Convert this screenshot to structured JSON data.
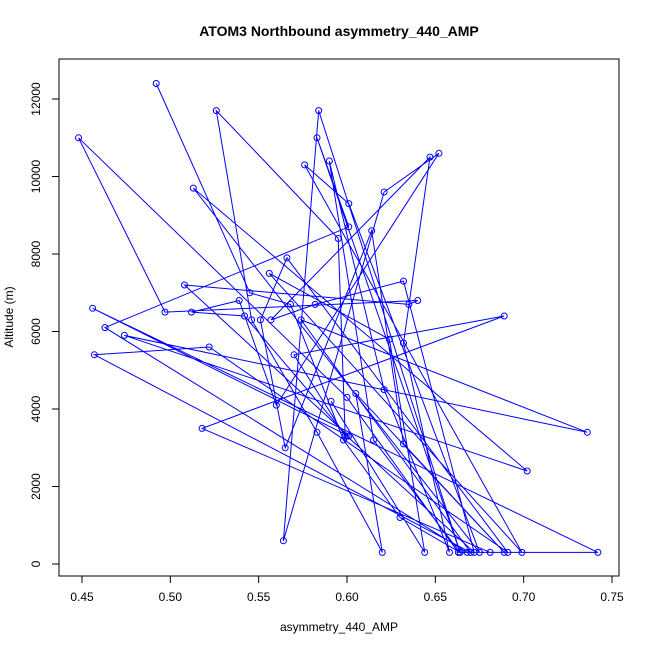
{
  "chart_data": {
    "type": "line",
    "title": "ATOM3 Northbound asymmetry_440_AMP",
    "xlabel": "asymmetry_440_AMP",
    "ylabel": "Altitude (m)",
    "xlim": [
      0.445,
      0.745
    ],
    "ylim": [
      0,
      12600
    ],
    "xticks": [
      0.45,
      0.5,
      0.55,
      0.6,
      0.65,
      0.7,
      0.75
    ],
    "xtick_labels": [
      "0.45",
      "0.50",
      "0.55",
      "0.60",
      "0.65",
      "0.70",
      "0.75"
    ],
    "yticks": [
      0,
      2000,
      4000,
      6000,
      8000,
      10000,
      12000
    ],
    "ytick_labels": [
      "0",
      "2000",
      "4000",
      "6000",
      "8000",
      "10000",
      "12000"
    ],
    "line_color": "#0000ff",
    "marker": "open-circle",
    "grid": false,
    "series": [
      {
        "x": [
          0.492,
          0.545,
          0.568,
          0.598,
          0.63,
          0.664,
          0.584,
          0.564,
          0.621,
          0.652,
          0.56,
          0.539,
          0.512,
          0.542,
          0.6,
          0.672,
          0.632,
          0.582,
          0.557,
          0.647,
          0.632,
          0.658,
          0.621,
          0.59,
          0.615,
          0.664,
          0.583,
          0.601,
          0.463,
          0.668,
          0.742,
          0.456,
          0.601,
          0.508,
          0.635,
          0.64,
          0.497,
          0.448,
          0.6,
          0.663,
          0.681,
          0.518,
          0.689,
          0.57,
          0.599,
          0.595,
          0.526,
          0.546,
          0.583,
          0.62,
          0.605,
          0.689,
          0.632,
          0.614,
          0.565,
          0.551,
          0.566,
          0.691,
          0.522,
          0.457,
          0.67,
          0.574,
          0.736,
          0.474,
          0.702,
          0.513,
          0.675,
          0.601,
          0.576,
          0.699,
          0.556,
          0.624,
          0.644,
          0.591
        ],
        "y": [
          12400,
          7000,
          6700,
          3200,
          1200,
          300,
          11700,
          600,
          9600,
          10600,
          4100,
          6800,
          6500,
          6400,
          3300,
          300,
          7300,
          6700,
          6300,
          10500,
          5700,
          300,
          4500,
          10400,
          3200,
          300,
          11000,
          8700,
          6100,
          300,
          300,
          6600,
          3300,
          7200,
          6700,
          6800,
          6500,
          11000,
          4300,
          300,
          300,
          3500,
          6400,
          5400,
          3300,
          8400,
          11700,
          6300,
          3400,
          300,
          4400,
          300,
          3100,
          8600,
          3000,
          6300,
          7900,
          300,
          5600,
          5400,
          300,
          6300,
          3400,
          5900,
          2400,
          9700,
          300,
          9300,
          10300,
          300,
          7500,
          5800,
          300,
          4200
        ]
      }
    ]
  }
}
